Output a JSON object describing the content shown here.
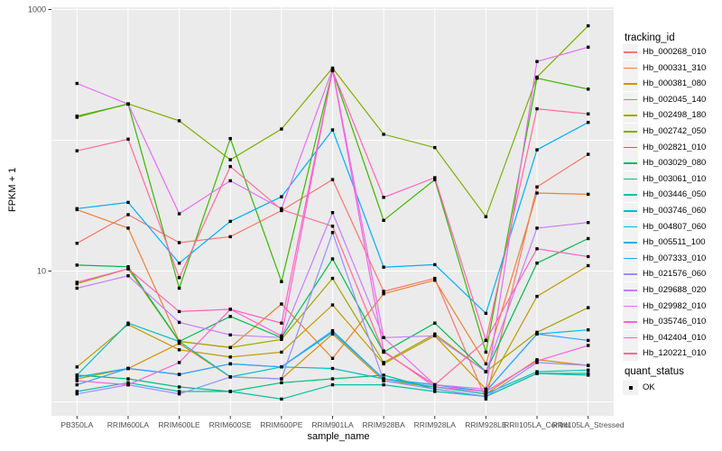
{
  "figure": {
    "background": "#FFFFFF",
    "panel_background": "#EBEBEB",
    "gridline_color": "#FFFFFF",
    "tick_color": "#333333",
    "tick_label_color": "#4D4D4D",
    "point_color": "#000000"
  },
  "axes": {
    "y": {
      "title": "FPKM + 1",
      "tick_labels": [
        "1000",
        "10"
      ],
      "tick_values": [
        1000,
        10
      ]
    },
    "x": {
      "title": "sample_name"
    }
  },
  "legend": {
    "tracking_title": "tracking_id",
    "quant_title": "quant_status",
    "quant_items": [
      {
        "label": "OK",
        "marker": "black-square"
      }
    ]
  },
  "chart_data": {
    "type": "line",
    "title": "",
    "xlabel": "sample_name",
    "ylabel": "FPKM + 1",
    "yscale": "log10",
    "ylim": [
      1,
      1000
    ],
    "grid": true,
    "legend_position": "right",
    "point_marker": "small black square (quant_status OK)",
    "categories": [
      "PB350LA",
      "RRIM600LA",
      "RRIM600LE",
      "RRIM600SE",
      "RRIM600PE",
      "RRIM901LA",
      "RRIM928BA",
      "RRIM928LA",
      "RRIM928LE",
      "RRII105LA_Control",
      "RRII105LA_Stressed"
    ],
    "series": [
      {
        "name": "Hb_000268_010",
        "color": "#F8766D",
        "values": [
          16.3,
          27,
          16.5,
          18.3,
          29,
          50,
          7.0,
          8.8,
          1.05,
          44,
          78
        ]
      },
      {
        "name": "Hb_000331_310",
        "color": "#EA8331",
        "values": [
          29.5,
          21.3,
          2.9,
          2.6,
          5.6,
          2.15,
          6.7,
          8.5,
          1.95,
          39.5,
          38.6
        ]
      },
      {
        "name": "Hb_000381_080",
        "color": "#D89000",
        "values": [
          1.5,
          1.8,
          2.8,
          1.55,
          1.5,
          3.3,
          1.45,
          1.3,
          1.15,
          2.1,
          1.9
        ]
      },
      {
        "name": "Hb_002045_140",
        "color": "#C09B00",
        "values": [
          1.85,
          3.9,
          2.5,
          2.2,
          2.4,
          5.5,
          1.95,
          3.2,
          1.25,
          6.4,
          11.0
        ]
      },
      {
        "name": "Hb_002498_180",
        "color": "#A3A500",
        "values": [
          8.0,
          10.4,
          2.9,
          2.6,
          3.0,
          8.8,
          2.0,
          3.3,
          1.7,
          3.4,
          5.25
        ]
      },
      {
        "name": "Hb_002742_050",
        "color": "#7CAE00",
        "values": [
          150,
          190,
          141,
          71,
          122,
          356,
          111,
          88,
          26,
          304,
          750
        ]
      },
      {
        "name": "Hb_002821_010",
        "color": "#39B600",
        "values": [
          153,
          189,
          7.4,
          103,
          8.3,
          340,
          24.4,
          50,
          2.4,
          298,
          246
        ]
      },
      {
        "name": "Hb_003029_080",
        "color": "#00BB4E",
        "values": [
          11.1,
          10.8,
          2.9,
          4.5,
          3.1,
          12.4,
          2.4,
          4.0,
          1.7,
          11.5,
          17.7
        ]
      },
      {
        "name": "Hb_003061_010",
        "color": "#00BF7D",
        "values": [
          1.6,
          1.5,
          1.3,
          1.2,
          1.4,
          1.5,
          1.6,
          1.25,
          1.1,
          1.65,
          1.65
        ]
      },
      {
        "name": "Hb_003446_050",
        "color": "#00C1A7",
        "values": [
          1.2,
          1.4,
          1.2,
          1.2,
          1.05,
          1.35,
          1.35,
          1.2,
          1.1,
          1.65,
          1.6
        ]
      },
      {
        "name": "Hb_003746_060",
        "color": "#00BFC4",
        "values": [
          1.6,
          4.0,
          2.9,
          1.55,
          1.85,
          1.8,
          1.5,
          1.3,
          1.15,
          1.7,
          1.75
        ]
      },
      {
        "name": "Hb_004807_060",
        "color": "#00BAE0",
        "values": [
          1.55,
          1.8,
          1.62,
          1.95,
          1.85,
          3.4,
          1.5,
          1.35,
          1.2,
          3.3,
          3.55
        ]
      },
      {
        "name": "Hb_005511_100",
        "color": "#00B0F6",
        "values": [
          30,
          33.5,
          11.5,
          24,
          37,
          120,
          10.7,
          11.2,
          4.75,
          84.5,
          137
        ]
      },
      {
        "name": "Hb_007333_010",
        "color": "#35A2FF",
        "values": [
          1.35,
          1.8,
          1.62,
          1.95,
          1.85,
          3.5,
          1.5,
          1.35,
          1.2,
          3.3,
          2.95
        ]
      },
      {
        "name": "Hb_021576_060",
        "color": "#9590FF",
        "values": [
          1.15,
          1.35,
          1.15,
          1.55,
          1.5,
          19.7,
          1.45,
          1.25,
          1.1,
          2.0,
          1.9
        ]
      },
      {
        "name": "Hb_029688_020",
        "color": "#C77CFF",
        "values": [
          7.4,
          9.2,
          4.05,
          3.25,
          3.1,
          28,
          3.1,
          3.2,
          1.7,
          21.3,
          23.5
        ]
      },
      {
        "name": "Hb_029982_010",
        "color": "#E76BF3",
        "values": [
          272,
          189,
          27.4,
          49,
          30,
          350,
          3.1,
          1.35,
          1.25,
          400,
          515
        ]
      },
      {
        "name": "Hb_035746_010",
        "color": "#FA62DB",
        "values": [
          1.45,
          1.35,
          2.0,
          5.1,
          3.2,
          345,
          2.45,
          1.3,
          1.2,
          2.05,
          2.7
        ]
      },
      {
        "name": "Hb_042404_010",
        "color": "#FF62BC",
        "values": [
          8.2,
          10.4,
          4.9,
          5.1,
          4.0,
          340,
          36.6,
          51.7,
          2.95,
          14.8,
          12.9
        ]
      },
      {
        "name": "Hb_120221_010",
        "color": "#FF6A98",
        "values": [
          83,
          102,
          8.9,
          63,
          29.5,
          22,
          2.4,
          1.35,
          2.95,
          174,
          159
        ]
      }
    ]
  }
}
